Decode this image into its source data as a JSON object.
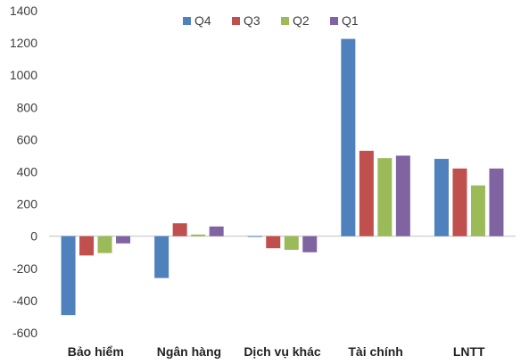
{
  "chart_data": {
    "type": "bar",
    "title": "",
    "xlabel": "",
    "ylabel": "",
    "categories": [
      "Bảo hiểm",
      "Ngân hàng",
      "Dịch vụ khác",
      "Tài chính",
      "LNTT"
    ],
    "series": [
      {
        "name": "Q4",
        "color": "#4F81BD",
        "values": [
          -490,
          -260,
          -5,
          1225,
          480
        ]
      },
      {
        "name": "Q3",
        "color": "#C0504D",
        "values": [
          -120,
          80,
          -75,
          530,
          420
        ]
      },
      {
        "name": "Q2",
        "color": "#9BBB59",
        "values": [
          -105,
          10,
          -85,
          485,
          315
        ]
      },
      {
        "name": "Q1",
        "color": "#8064A2",
        "values": [
          -45,
          60,
          -100,
          500,
          420
        ]
      }
    ],
    "ylim": [
      -600,
      1400
    ],
    "yticks": [
      -600,
      -400,
      -200,
      0,
      200,
      400,
      600,
      800,
      1000,
      1200,
      1400
    ],
    "grid": false,
    "legend_position": "top-center"
  }
}
